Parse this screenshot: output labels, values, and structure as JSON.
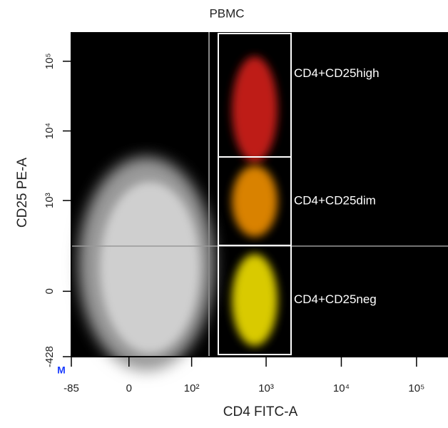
{
  "chart_data": {
    "type": "scatter",
    "title": "PBMC",
    "x_label": "CD4 FITC-A",
    "y_label": "CD25 PE-A",
    "axis_marker": "M",
    "xscale": "biexponential",
    "yscale": "biexponential",
    "xlim": [
      -85,
      262144
    ],
    "ylim": [
      -428,
      262144
    ],
    "xticks": [
      -85,
      0,
      {
        "value": 100,
        "label": "10²"
      },
      {
        "value": 1000,
        "label": "10³"
      },
      {
        "value": 10000,
        "label": "10⁴"
      },
      {
        "value": 100000,
        "label": "10⁵"
      }
    ],
    "yticks": [
      -428,
      0,
      {
        "value": 1000,
        "label": "10³"
      },
      {
        "value": 10000,
        "label": "10⁴"
      },
      {
        "value": 100000,
        "label": "10⁵"
      }
    ],
    "gates": [
      {
        "name": "CD4+CD25high",
        "color": "#e0201a"
      },
      {
        "name": "CD4+CD25dim",
        "color": "#ff9900"
      },
      {
        "name": "CD4+CD25neg",
        "color": "#ffee00"
      }
    ]
  }
}
